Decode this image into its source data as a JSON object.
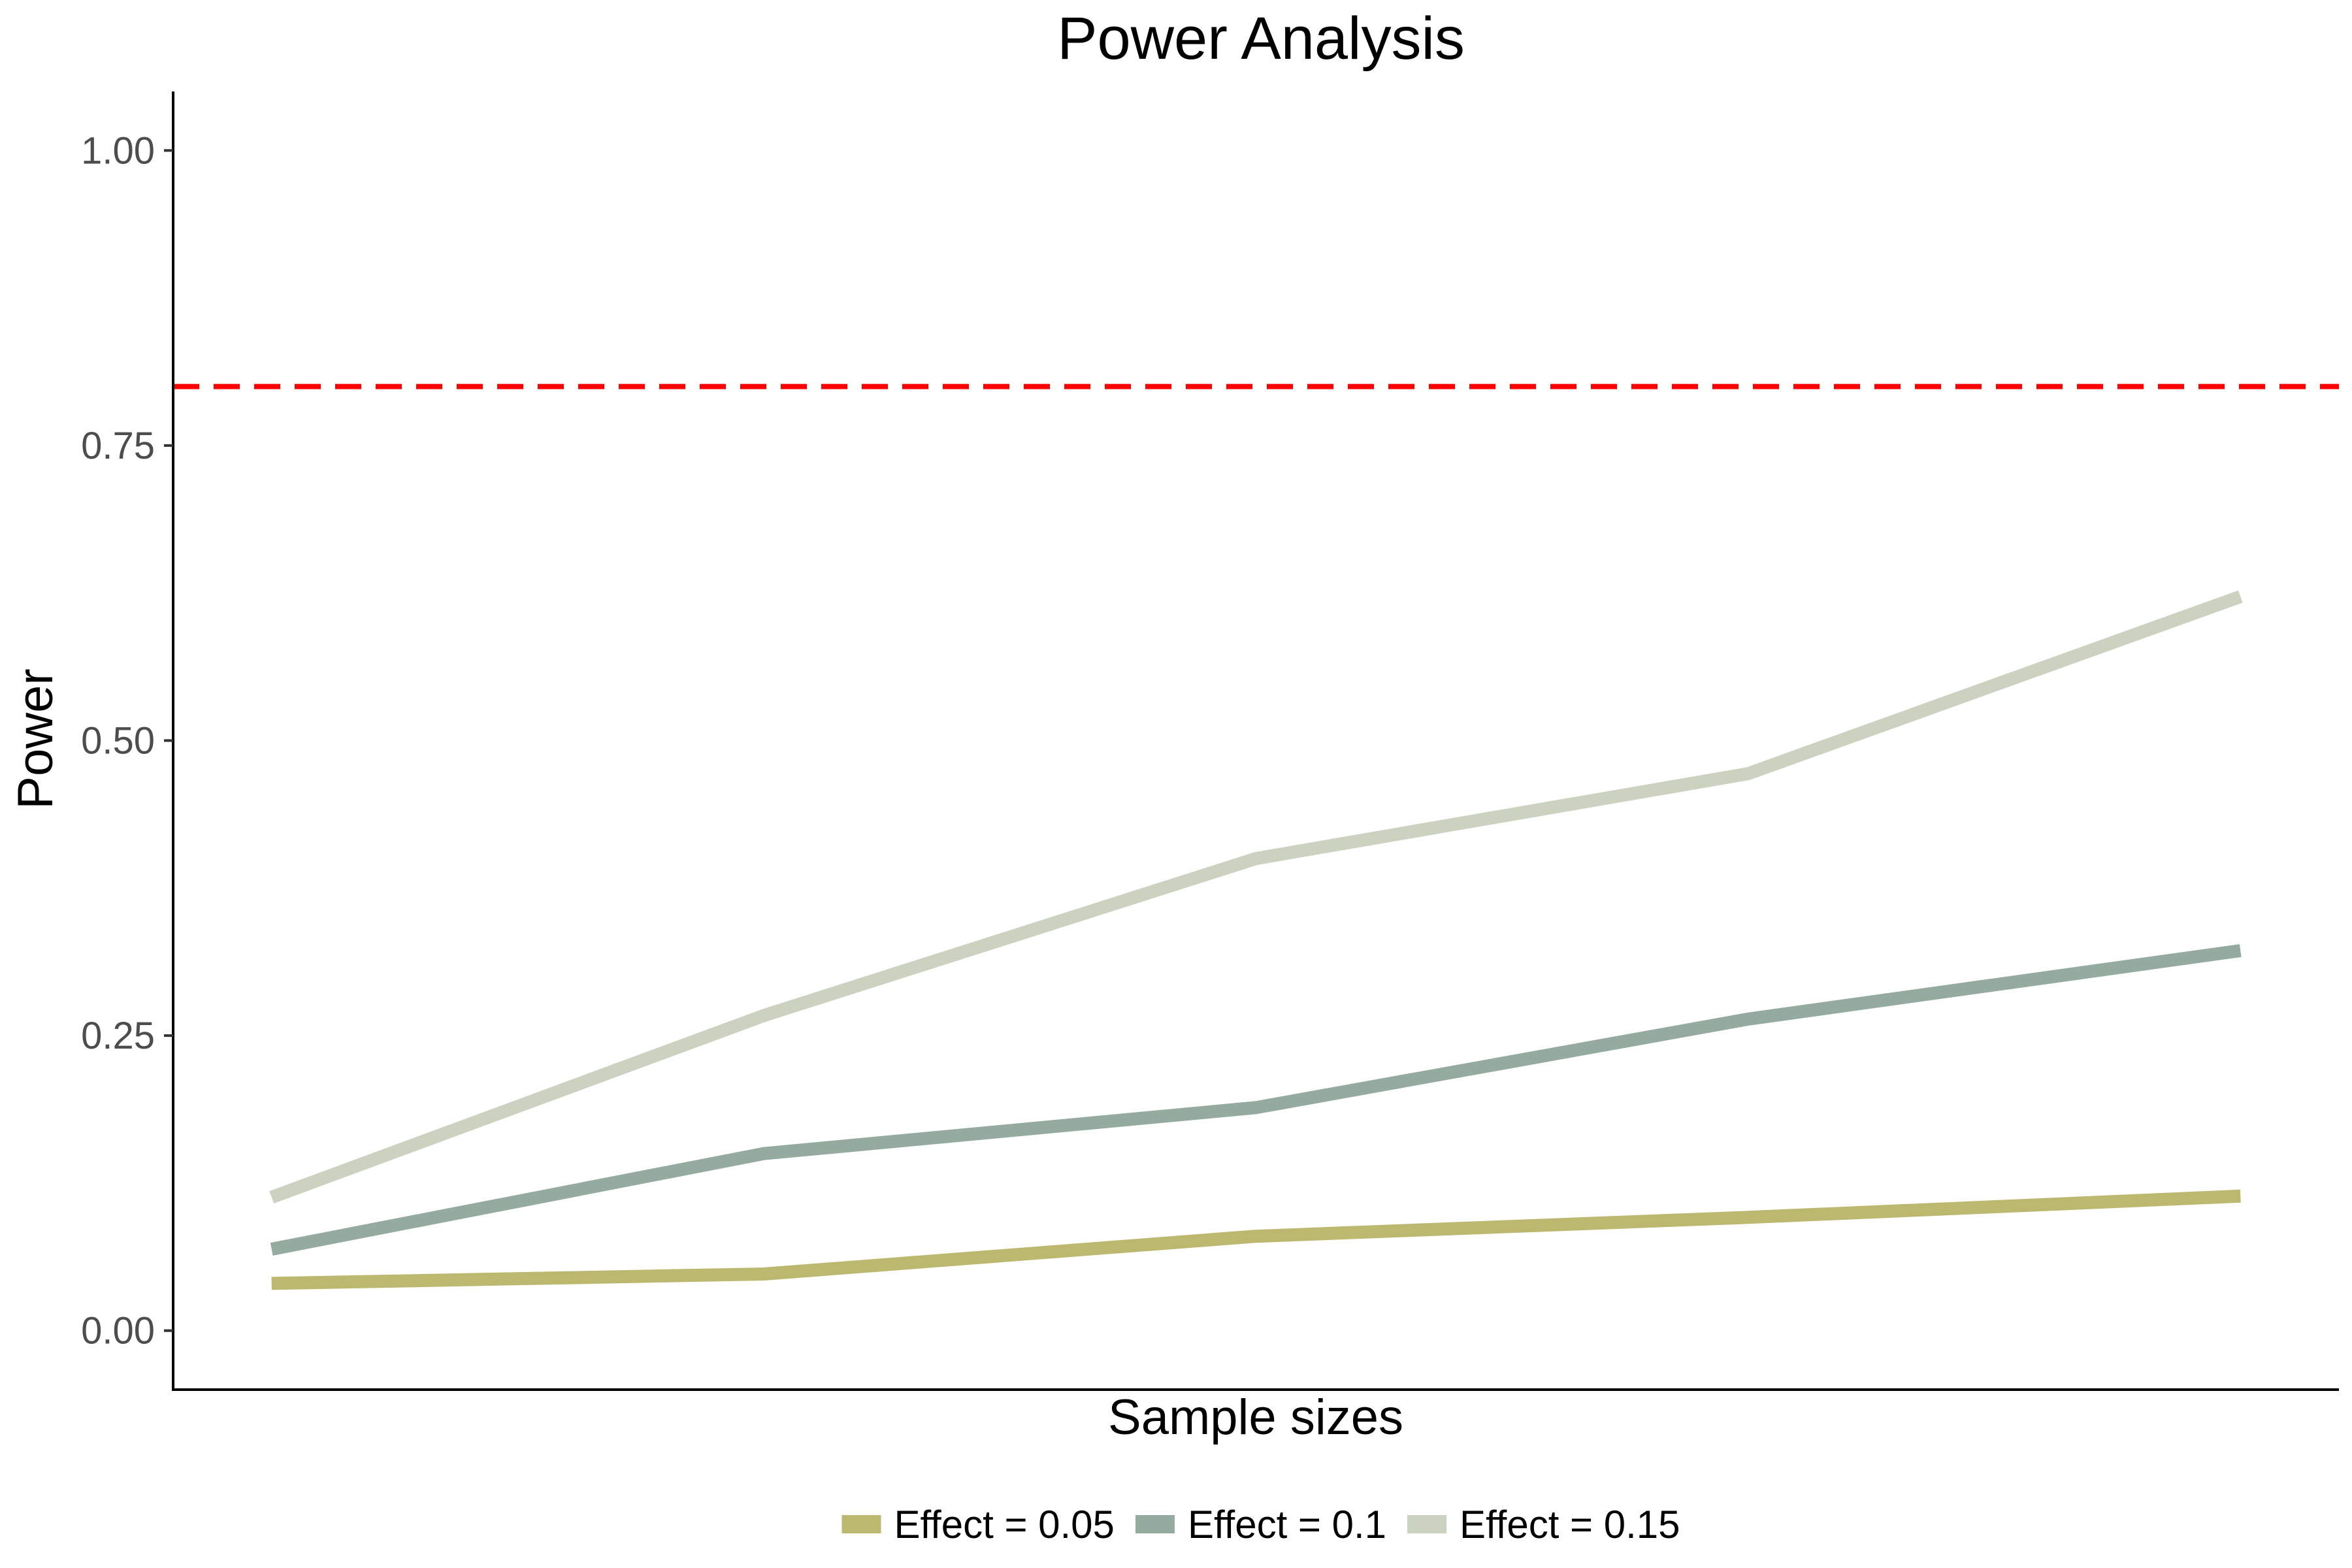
{
  "chart_data": {
    "type": "line",
    "title": "Power Analysis",
    "xlabel": "Sample sizes",
    "ylabel": "Power",
    "x": [
      1,
      2,
      3,
      4,
      5
    ],
    "xlim": [
      0.8,
      5.2
    ],
    "ylim": [
      -0.05,
      1.05
    ],
    "yticks": [
      0.0,
      0.25,
      0.5,
      0.75,
      1.0
    ],
    "ytick_labels": [
      "0.00",
      "0.25",
      "0.50",
      "0.75",
      "1.00"
    ],
    "grid": false,
    "legend_position": "bottom",
    "series": [
      {
        "name": "Effect = 0.05",
        "color": "#bdb86f",
        "values": [
          0.04,
          0.048,
          0.08,
          0.096,
          0.114
        ]
      },
      {
        "name": "Effect = 0.1",
        "color": "#95aba0",
        "values": [
          0.069,
          0.15,
          0.189,
          0.264,
          0.322
        ]
      },
      {
        "name": "Effect = 0.15",
        "color": "#cbd2c0",
        "values": [
          0.113,
          0.267,
          0.4,
          0.472,
          0.622
        ]
      }
    ],
    "reference_line": {
      "y": 0.8,
      "color": "#ff0000",
      "style": "dashed"
    }
  }
}
